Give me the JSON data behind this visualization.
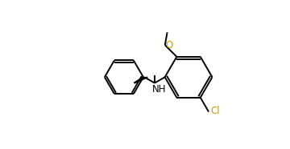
{
  "background_color": "#ffffff",
  "line_color": "#000000",
  "cl_color": "#c8a000",
  "o_color": "#c8a000",
  "line_width": 1.4,
  "font_size": 8.5,
  "dbo": 0.012,
  "figsize": [
    3.6,
    1.86
  ],
  "dpi": 100,
  "xlim": [
    -0.02,
    1.0
  ],
  "ylim": [
    0.05,
    0.95
  ]
}
